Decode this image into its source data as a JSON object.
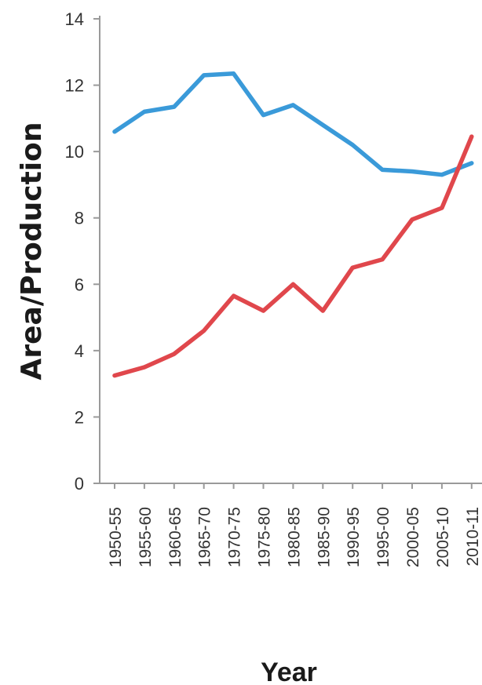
{
  "chart_data": {
    "type": "line",
    "title": "",
    "xlabel": "Year",
    "ylabel": "Area/Production",
    "ylim": [
      0,
      14
    ],
    "yticks": [
      "0",
      "2",
      "4",
      "6",
      "8",
      "10",
      "12",
      "14"
    ],
    "categories": [
      "1950-55",
      "1955-60",
      "1960-65",
      "1965-70",
      "1970-75",
      "1975-80",
      "1980-85",
      "1985-90",
      "1990-95",
      "1995-00",
      "2000-05",
      "2005-10",
      "2010-11"
    ],
    "series": [
      {
        "color": "#3a9ad9",
        "values": [
          10.6,
          11.2,
          11.35,
          12.3,
          12.35,
          11.1,
          11.4,
          10.8,
          10.2,
          9.45,
          9.4,
          9.3,
          9.65
        ]
      },
      {
        "color": "#e0474c",
        "values": [
          3.25,
          3.5,
          3.9,
          4.6,
          5.65,
          5.2,
          6.0,
          5.2,
          6.5,
          6.75,
          7.95,
          8.3,
          10.45
        ]
      }
    ],
    "grid": false,
    "legend": "none"
  }
}
